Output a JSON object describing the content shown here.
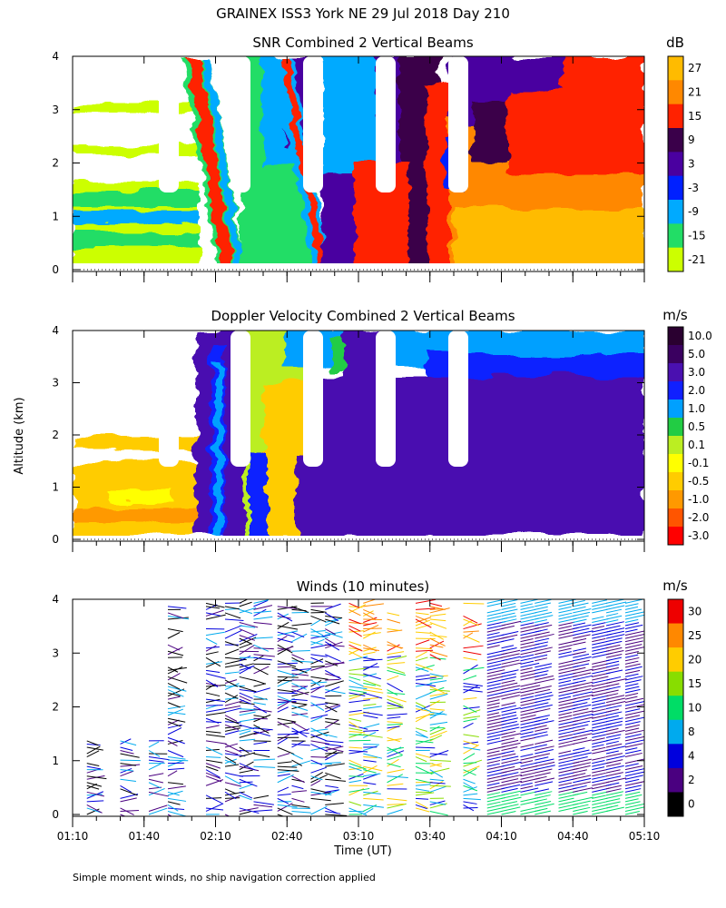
{
  "header": {
    "title": "GRAINEX ISS3 York NE  29 Jul 2018 Day 210"
  },
  "footnote": "Simple moment winds, no ship navigation correction applied",
  "chart_data": [
    {
      "type": "heatmap",
      "title": "SNR Combined 2 Vertical Beams",
      "ylabel": "",
      "xlabel": "",
      "ylim": [
        0,
        4
      ],
      "yticks": [
        "0",
        "1",
        "2",
        "3",
        "4"
      ],
      "colorbar": {
        "unit": "dB",
        "labels": [
          "27",
          "21",
          "15",
          "9",
          "3",
          "-3",
          "-9",
          "-15",
          "-21"
        ],
        "colors": [
          "#ffbb00",
          "#ff8800",
          "#ff2200",
          "#3a004a",
          "#4a00a0",
          "#0020ff",
          "#00aaff",
          "#22dd66",
          "#ccff00"
        ]
      },
      "vertical_gaps_time": [
        "02:04",
        "02:18",
        "02:44",
        "03:14",
        "03:44"
      ],
      "gap_bottom_km": 1.45
    },
    {
      "type": "heatmap",
      "title": "Doppler Velocity Combined 2 Vertical Beams",
      "ylabel": "Altitude (km)",
      "xlabel": "",
      "ylim": [
        0,
        4
      ],
      "yticks": [
        "0",
        "1",
        "2",
        "3",
        "4"
      ],
      "colorbar": {
        "unit": "m/s",
        "labels": [
          "10.0",
          "5.0",
          "3.0",
          "2.0",
          "1.0",
          "0.5",
          "0.1",
          "-0.1",
          "-0.5",
          "-1.0",
          "-2.0",
          "-3.0"
        ],
        "colors": [
          "#2a0030",
          "#3a0060",
          "#4a10b0",
          "#1020ff",
          "#00a0ff",
          "#22cc44",
          "#bbee22",
          "#ffff00",
          "#ffcc00",
          "#ff9900",
          "#ff5500",
          "#ff0000"
        ]
      },
      "vertical_gaps_time": [
        "02:04",
        "02:18",
        "02:44",
        "03:14",
        "03:44"
      ],
      "gap_bottom_km": 1.45
    },
    {
      "type": "scatter",
      "title": "Winds (10 minutes)",
      "ylabel": "",
      "xlabel": "Time (UT)",
      "ylim": [
        0,
        4
      ],
      "yticks": [
        "0",
        "1",
        "2",
        "3",
        "4"
      ],
      "xticks": [
        "01:10",
        "01:40",
        "02:10",
        "02:40",
        "03:10",
        "03:40",
        "04:10",
        "04:40",
        "05:10"
      ],
      "colorbar": {
        "unit": "m/s",
        "labels": [
          "30",
          "25",
          "20",
          "15",
          "10",
          "8",
          "4",
          "2",
          "0"
        ],
        "colors": [
          "#ee0000",
          "#ff8800",
          "#ffcc00",
          "#88dd00",
          "#00dd66",
          "#00aaee",
          "#0000dd",
          "#4a0080",
          "#000000"
        ]
      },
      "barb_columns_time": [
        "01:16",
        "01:30",
        "01:42",
        "01:50",
        "02:06",
        "02:14",
        "02:20",
        "02:26",
        "02:36",
        "02:42",
        "02:50",
        "02:56",
        "03:06",
        "03:12",
        "03:22",
        "03:34",
        "03:40",
        "03:54",
        "04:04",
        "04:10",
        "04:18",
        "04:24",
        "04:34",
        "04:40",
        "04:48",
        "04:54",
        "05:02"
      ]
    }
  ]
}
